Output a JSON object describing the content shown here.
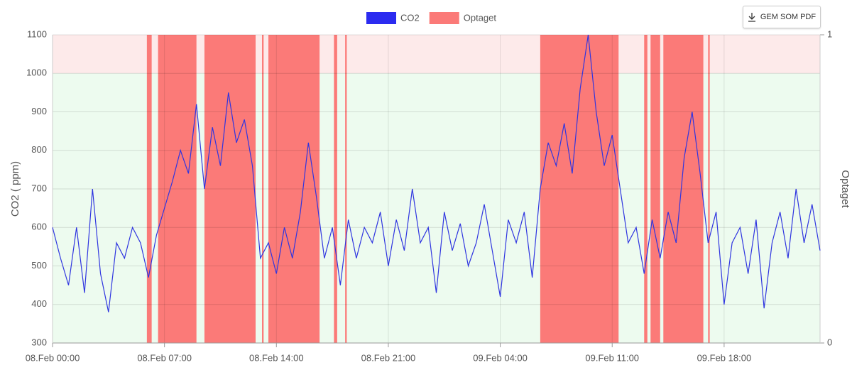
{
  "chart_data": {
    "type": "line",
    "legend_position": "top",
    "button": "GEM SOM PDF",
    "ylabel": "CO2 ( ppm)",
    "y2label": "Optaget",
    "xlim": [
      0,
      48
    ],
    "xticks": [
      {
        "value": 0,
        "label": "08.Feb 00:00"
      },
      {
        "value": 7,
        "label": "08.Feb 07:00"
      },
      {
        "value": 14,
        "label": "08.Feb 14:00"
      },
      {
        "value": 21,
        "label": "08.Feb 21:00"
      },
      {
        "value": 28,
        "label": "09.Feb 04:00"
      },
      {
        "value": 35,
        "label": "09.Feb 11:00"
      },
      {
        "value": 42,
        "label": "09.Feb 18:00"
      }
    ],
    "ylim": [
      300,
      1100
    ],
    "yticks": [
      300,
      400,
      500,
      600,
      700,
      800,
      900,
      1000,
      1100
    ],
    "y2lim": [
      0,
      1
    ],
    "y2ticks": [
      0,
      1
    ],
    "grid": true,
    "zones": [
      {
        "from": 1000,
        "to": 1100,
        "color": "#fdeaea"
      },
      {
        "from": 300,
        "to": 1000,
        "color": "#edfbef"
      }
    ],
    "series": [
      {
        "name": "CO2",
        "color": "#2f35e0",
        "legend_color": "#2b2bf0",
        "x": [
          0,
          0.5,
          1,
          1.5,
          2,
          2.5,
          3,
          3.5,
          4,
          4.5,
          5,
          5.5,
          6,
          6.5,
          7,
          7.5,
          8,
          8.5,
          9,
          9.5,
          10,
          10.5,
          11,
          11.5,
          12,
          12.5,
          13,
          13.5,
          14,
          14.5,
          15,
          15.5,
          16,
          16.5,
          17,
          17.5,
          18,
          18.5,
          19,
          19.5,
          20,
          20.5,
          21,
          21.5,
          22,
          22.5,
          23,
          23.5,
          24,
          24.5,
          25,
          25.5,
          26,
          26.5,
          27,
          27.5,
          28,
          28.5,
          29,
          29.5,
          30,
          30.5,
          31,
          31.5,
          32,
          32.5,
          33,
          33.5,
          34,
          34.5,
          35,
          35.5,
          36,
          36.5,
          37,
          37.5,
          38,
          38.5,
          39,
          39.5,
          40,
          40.5,
          41,
          41.5,
          42,
          42.5,
          43,
          43.5,
          44,
          44.5,
          45,
          45.5,
          46,
          46.5,
          47,
          47.5,
          48
        ],
        "values": [
          600,
          520,
          450,
          600,
          430,
          700,
          480,
          380,
          560,
          520,
          600,
          560,
          470,
          580,
          650,
          720,
          800,
          740,
          920,
          700,
          860,
          760,
          950,
          820,
          880,
          760,
          520,
          560,
          480,
          600,
          520,
          640,
          820,
          680,
          520,
          600,
          450,
          620,
          520,
          600,
          560,
          640,
          500,
          620,
          540,
          700,
          560,
          600,
          430,
          640,
          540,
          610,
          500,
          560,
          660,
          540,
          420,
          620,
          560,
          640,
          470,
          700,
          820,
          760,
          870,
          740,
          960,
          1100,
          900,
          760,
          840,
          700,
          560,
          600,
          480,
          620,
          520,
          640,
          560,
          780,
          900,
          740,
          560,
          640,
          400,
          560,
          600,
          480,
          620,
          390,
          560,
          640,
          520,
          700,
          560,
          660,
          540
        ]
      },
      {
        "name": "Optaget",
        "color": "#fb7a78",
        "axis": "y2",
        "step": true,
        "x": [
          0,
          5.9,
          6.2,
          6.6,
          9.0,
          9.5,
          12.7,
          13.1,
          13.2,
          13.5,
          16.7,
          17.6,
          17.8,
          18.3,
          18.4,
          30.5,
          35.4,
          37.0,
          37.2,
          37.4,
          38.0,
          38.2,
          40.7,
          41.0,
          41.1
        ],
        "values": [
          0,
          1,
          0,
          1,
          0,
          1,
          0,
          1,
          0,
          1,
          0,
          1,
          0,
          1,
          0,
          1,
          0,
          1,
          0,
          1,
          0,
          1,
          0,
          1,
          0
        ]
      }
    ]
  }
}
